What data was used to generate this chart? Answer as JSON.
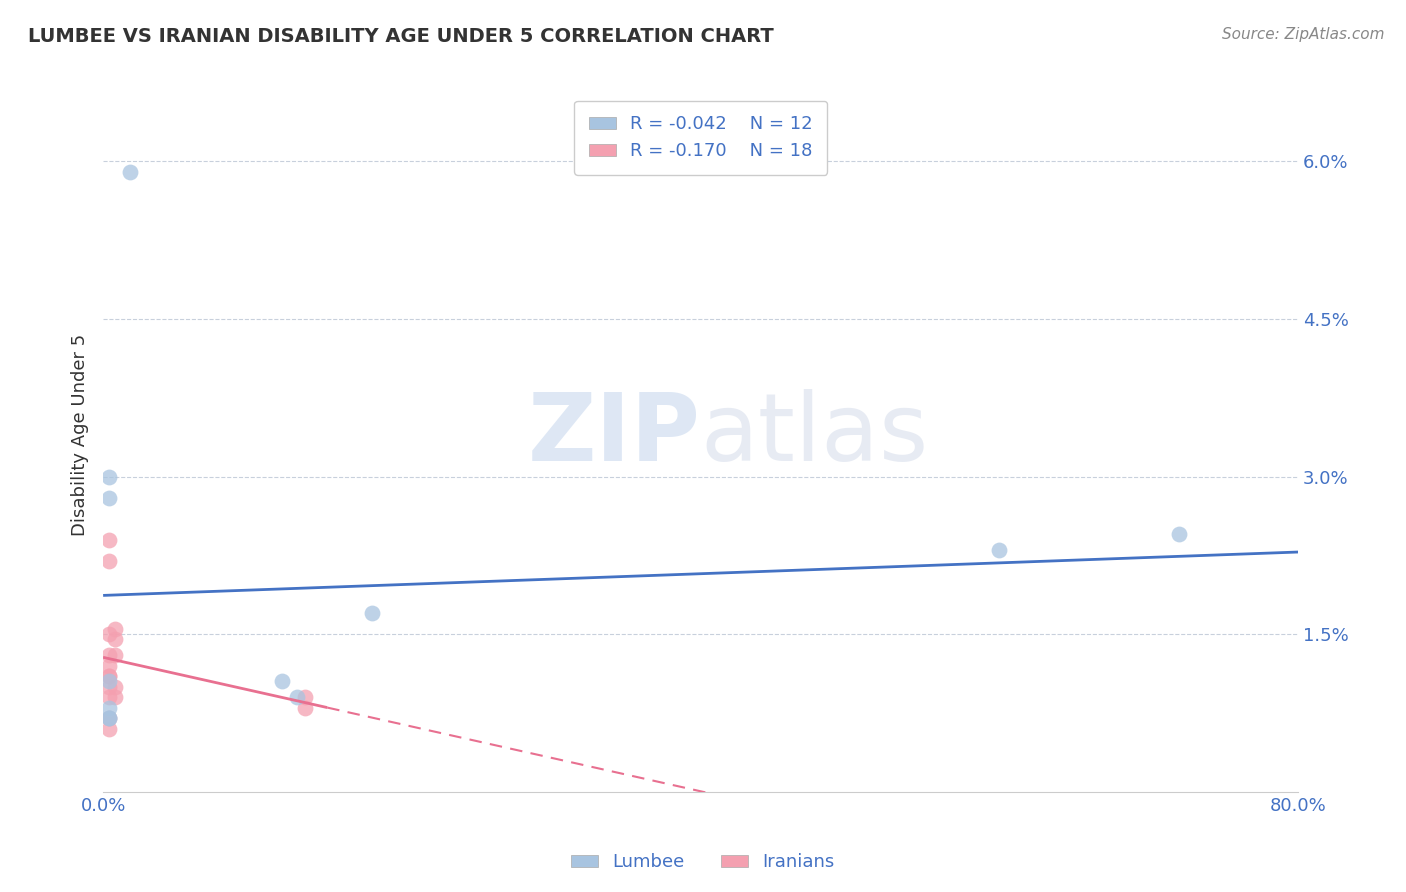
{
  "title": "LUMBEE VS IRANIAN DISABILITY AGE UNDER 5 CORRELATION CHART",
  "source": "Source: ZipAtlas.com",
  "xlabel": "",
  "ylabel": "Disability Age Under 5",
  "xlim": [
    0.0,
    0.8
  ],
  "ylim": [
    0.0,
    0.068
  ],
  "yticks": [
    0.015,
    0.03,
    0.045,
    0.06
  ],
  "ytick_labels": [
    "1.5%",
    "3.0%",
    "4.5%",
    "6.0%"
  ],
  "xticks": [
    0.0,
    0.8
  ],
  "xtick_labels": [
    "0.0%",
    "80.0%"
  ],
  "lumbee_x": [
    0.018,
    0.004,
    0.004,
    0.004,
    0.004,
    0.004,
    0.18,
    0.12,
    0.13,
    0.6,
    0.72,
    0.004
  ],
  "lumbee_y": [
    0.059,
    0.03,
    0.028,
    0.0105,
    0.008,
    0.007,
    0.017,
    0.0105,
    0.009,
    0.023,
    0.0245,
    0.007
  ],
  "iranian_x": [
    0.004,
    0.004,
    0.004,
    0.008,
    0.008,
    0.008,
    0.004,
    0.004,
    0.004,
    0.004,
    0.004,
    0.008,
    0.004,
    0.008,
    0.135,
    0.135,
    0.004,
    0.004
  ],
  "iranian_y": [
    0.024,
    0.022,
    0.015,
    0.0155,
    0.0145,
    0.013,
    0.013,
    0.012,
    0.011,
    0.011,
    0.01,
    0.01,
    0.009,
    0.009,
    0.009,
    0.008,
    0.007,
    0.006
  ],
  "lumbee_color": "#a8c4e0",
  "iranian_color": "#f4a0b0",
  "lumbee_line_color": "#4472c4",
  "iranian_line_color": "#e87090",
  "lumbee_r": "-0.042",
  "lumbee_n": "12",
  "iranian_r": "-0.170",
  "iranian_n": "18",
  "background_color": "#ffffff",
  "watermark_zip": "ZIP",
  "watermark_atlas": "atlas",
  "title_color": "#4472c4",
  "axis_color": "#4472c4",
  "grid_color": "#c8d0dc",
  "marker_size": 130
}
